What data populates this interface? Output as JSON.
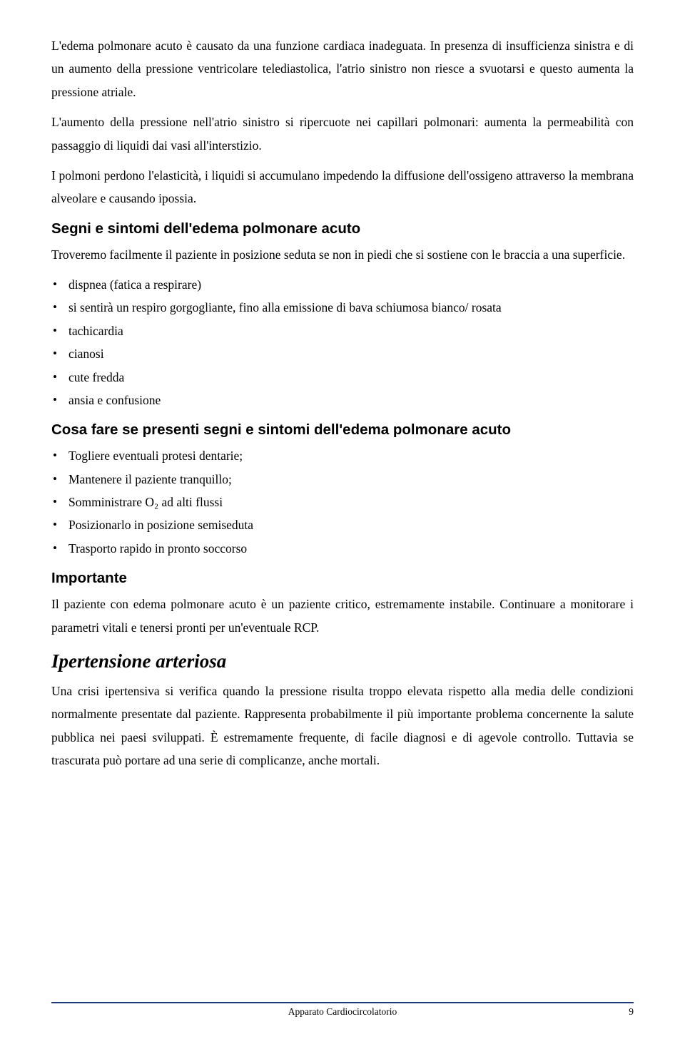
{
  "intro_para": "L'edema polmonare acuto è causato da una funzione cardiaca inadeguata. In presenza di insufficienza sinistra e di un aumento della pressione ventricolare telediastolica, l'atrio sinistro non riesce a svuotarsi e questo aumenta la pressione atriale.",
  "para2": "L'aumento della pressione nell'atrio sinistro si ripercuote nei capillari polmonari: aumenta la permeabilità con passaggio di liquidi dai vasi all'interstizio.",
  "para3": "I polmoni perdono l'elasticità, i liquidi si accumulano impedendo la diffusione dell'ossigeno attraverso la membrana alveolare e causando ipossia.",
  "h_signs": "Segni e sintomi dell'edema polmonare acuto",
  "signs_intro": "Troveremo facilmente il paziente in posizione seduta se non in piedi che si sostiene con le braccia a una superficie.",
  "signs": [
    "dispnea (fatica a respirare)",
    "si sentirà un respiro gorgogliante, fino alla emissione di bava schiumosa bianco/ rosata",
    "tachicardia",
    "cianosi",
    "cute fredda",
    "ansia e confusione"
  ],
  "h_whattodo": "Cosa fare se presenti segni e sintomi dell'edema polmonare acuto",
  "actions": [
    "Togliere eventuali protesi dentarie;",
    "Mantenere il paziente tranquillo;",
    "Somministrare O₂ ad alti flussi",
    "Posizionarlo in posizione semiseduta",
    "Trasporto rapido in pronto soccorso"
  ],
  "h_important": "Importante",
  "important_para": "Il paziente con edema polmonare acuto è un paziente critico, estremamente instabile. Continuare a monitorare i parametri vitali e tenersi pronti per un'eventuale RCP.",
  "h_hypertension": "Ipertensione arteriosa",
  "hyp_para": "Una crisi ipertensiva si verifica quando la pressione risulta troppo elevata rispetto alla media delle condizioni normalmente presentate dal paziente. Rappresenta probabilmente il più importante problema concernente la salute pubblica nei paesi sviluppati. È estremamente frequente, di facile diagnosi e di agevole controllo. Tuttavia se trascurata può portare ad una serie di complicanze, anche mortali.",
  "footer": {
    "title": "Apparato Cardiocircolatorio",
    "page": "9",
    "line_color": "#1a3a7a"
  }
}
